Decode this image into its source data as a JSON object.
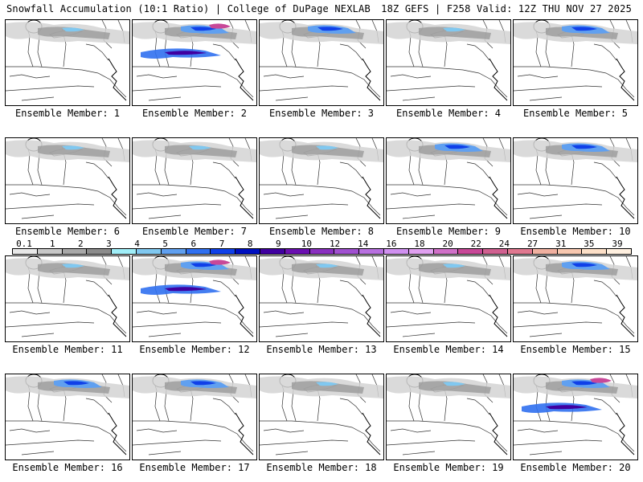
{
  "header": {
    "left": "Snowfall Accumulation (10:1 Ratio) | College of DuPage NEXLAB",
    "right": "18Z GEFS | F258 Valid: 12Z THU NOV 27 2025"
  },
  "legend": {
    "labels": [
      "0.1",
      "1",
      "2",
      "3",
      "4",
      "5",
      "6",
      "7",
      "8",
      "9",
      "10",
      "12",
      "14",
      "16",
      "18",
      "20",
      "22",
      "24",
      "27",
      "31",
      "35",
      "39"
    ],
    "colors": [
      "#e8e8e8",
      "#c8c8c8",
      "#a8a8a8",
      "#8c8c8c",
      "#a0eef8",
      "#80c8f0",
      "#60a0f0",
      "#3070f0",
      "#1040e8",
      "#0010c0",
      "#4000a0",
      "#6a0fb0",
      "#8a30c0",
      "#a050d0",
      "#b870e0",
      "#d090f0",
      "#e0a0f0",
      "#d070c8",
      "#c84898",
      "#d06090",
      "#e07890",
      "#f0b0a0",
      "#f8c8b0",
      "#fde0c8",
      "#fff0e0"
    ]
  },
  "panels": [
    {
      "label": "Ensemble Member: 1",
      "intensity": "light"
    },
    {
      "label": "Ensemble Member: 2",
      "intensity": "heavy"
    },
    {
      "label": "Ensemble Member: 3",
      "intensity": "moderate"
    },
    {
      "label": "Ensemble Member: 4",
      "intensity": "light"
    },
    {
      "label": "Ensemble Member: 5",
      "intensity": "moderate"
    },
    {
      "label": "Ensemble Member: 6",
      "intensity": "light"
    },
    {
      "label": "Ensemble Member: 7",
      "intensity": "light"
    },
    {
      "label": "Ensemble Member: 8",
      "intensity": "light"
    },
    {
      "label": "Ensemble Member: 9",
      "intensity": "moderate"
    },
    {
      "label": "Ensemble Member: 10",
      "intensity": "moderate"
    },
    {
      "label": "Ensemble Member: 11",
      "intensity": "light"
    },
    {
      "label": "Ensemble Member: 12",
      "intensity": "heavy"
    },
    {
      "label": "Ensemble Member: 13",
      "intensity": "light"
    },
    {
      "label": "Ensemble Member: 14",
      "intensity": "light"
    },
    {
      "label": "Ensemble Member: 15",
      "intensity": "moderate"
    },
    {
      "label": "Ensemble Member: 16",
      "intensity": "moderate"
    },
    {
      "label": "Ensemble Member: 17",
      "intensity": "moderate"
    },
    {
      "label": "Ensemble Member: 18",
      "intensity": "light"
    },
    {
      "label": "Ensemble Member: 19",
      "intensity": "light"
    },
    {
      "label": "Ensemble Member: 20",
      "intensity": "heavy"
    }
  ]
}
